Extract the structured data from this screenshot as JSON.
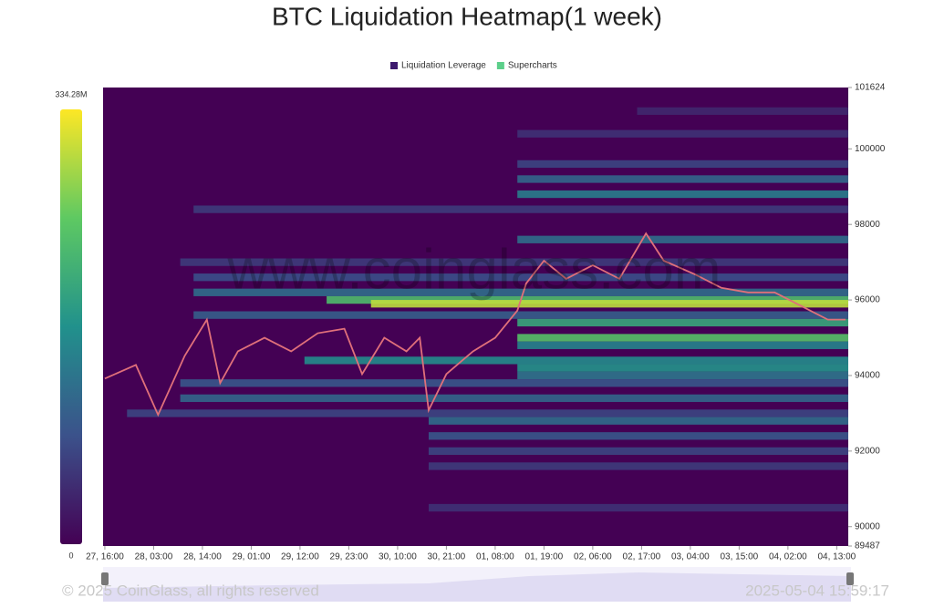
{
  "chart_data": {
    "type": "heatmap",
    "title": "BTC Liquidation Heatmap(1 week)",
    "legend": [
      {
        "name": "Liquidation Leverage",
        "color": "#3d1a6e"
      },
      {
        "name": "Supercharts",
        "color": "#5ccf8a"
      }
    ],
    "watermark": "www.coinglass.com",
    "xlim": [
      -0.4,
      167.6
    ],
    "xticks": [
      {
        "value": 0,
        "label": "27, 16:00"
      },
      {
        "value": 11,
        "label": "28, 03:00"
      },
      {
        "value": 22,
        "label": "28, 14:00"
      },
      {
        "value": 33,
        "label": "29, 01:00"
      },
      {
        "value": 44,
        "label": "29, 12:00"
      },
      {
        "value": 55,
        "label": "29, 23:00"
      },
      {
        "value": 66,
        "label": "30, 10:00"
      },
      {
        "value": 77,
        "label": "30, 21:00"
      },
      {
        "value": 88,
        "label": "01, 08:00"
      },
      {
        "value": 99,
        "label": "01, 19:00"
      },
      {
        "value": 110,
        "label": "02, 06:00"
      },
      {
        "value": 121,
        "label": "02, 17:00"
      },
      {
        "value": 132,
        "label": "03, 04:00"
      },
      {
        "value": 143,
        "label": "03, 15:00"
      },
      {
        "value": 154,
        "label": "04, 02:00"
      },
      {
        "value": 165,
        "label": "04, 13:00"
      }
    ],
    "ylim": [
      89487,
      101624
    ],
    "yticks": [
      101624,
      100000,
      98000,
      96000,
      94000,
      92000,
      90000,
      89487
    ],
    "colorbar": {
      "lim": [
        0,
        334.28
      ],
      "ticks": [
        {
          "value": 334.28,
          "label": "334.28M"
        },
        0
      ]
    },
    "bands": [
      {
        "price": 101000,
        "start": 120,
        "value": 40
      },
      {
        "price": 100400,
        "start": 93,
        "value": 50
      },
      {
        "price": 99600,
        "start": 93,
        "value": 70
      },
      {
        "price": 99200,
        "start": 93,
        "value": 110
      },
      {
        "price": 98800,
        "start": 93,
        "value": 140
      },
      {
        "price": 98400,
        "start": 20,
        "value": 60
      },
      {
        "price": 97600,
        "start": 93,
        "value": 120
      },
      {
        "price": 97000,
        "start": 17,
        "value": 60
      },
      {
        "price": 96600,
        "start": 20,
        "value": 80
      },
      {
        "price": 96200,
        "start": 20,
        "value": 120
      },
      {
        "price": 96000,
        "start": 50,
        "value": 230
      },
      {
        "price": 95900,
        "start": 60,
        "value": 300
      },
      {
        "price": 95600,
        "start": 20,
        "value": 100
      },
      {
        "price": 95400,
        "start": 93,
        "value": 200
      },
      {
        "price": 95000,
        "start": 93,
        "value": 240
      },
      {
        "price": 94800,
        "start": 93,
        "value": 150
      },
      {
        "price": 94400,
        "start": 45,
        "value": 160
      },
      {
        "price": 94200,
        "start": 93,
        "value": 170
      },
      {
        "price": 94000,
        "start": 93,
        "value": 130
      },
      {
        "price": 93800,
        "start": 17,
        "value": 90
      },
      {
        "price": 93400,
        "start": 17,
        "value": 110
      },
      {
        "price": 93000,
        "start": 5,
        "value": 70
      },
      {
        "price": 92800,
        "start": 73,
        "value": 120
      },
      {
        "price": 92400,
        "start": 73,
        "value": 90
      },
      {
        "price": 92000,
        "start": 73,
        "value": 70
      },
      {
        "price": 91600,
        "start": 73,
        "value": 60
      },
      {
        "price": 90500,
        "start": 73,
        "value": 50
      }
    ],
    "price": {
      "color": "#e0707a",
      "x": [
        0,
        7,
        12,
        18,
        23,
        26,
        30,
        36,
        42,
        48,
        54,
        58,
        63,
        68,
        71,
        73,
        77,
        83,
        88,
        93,
        95,
        99,
        104,
        110,
        116,
        122,
        126,
        133,
        139,
        145,
        151,
        157,
        163,
        167
      ],
      "y": [
        93920,
        94280,
        92960,
        94520,
        95480,
        93800,
        94640,
        95000,
        94640,
        95120,
        95240,
        94040,
        95000,
        94640,
        95000,
        93080,
        94040,
        94640,
        95000,
        95720,
        96440,
        97040,
        96560,
        96920,
        96560,
        97760,
        97040,
        96680,
        96320,
        96200,
        96200,
        95840,
        95480,
        95480
      ]
    },
    "footer": {
      "copyright": "© 2025 CoinGlass, all rights reserved",
      "timestamp": "2025-05-04 15:59:17"
    }
  }
}
